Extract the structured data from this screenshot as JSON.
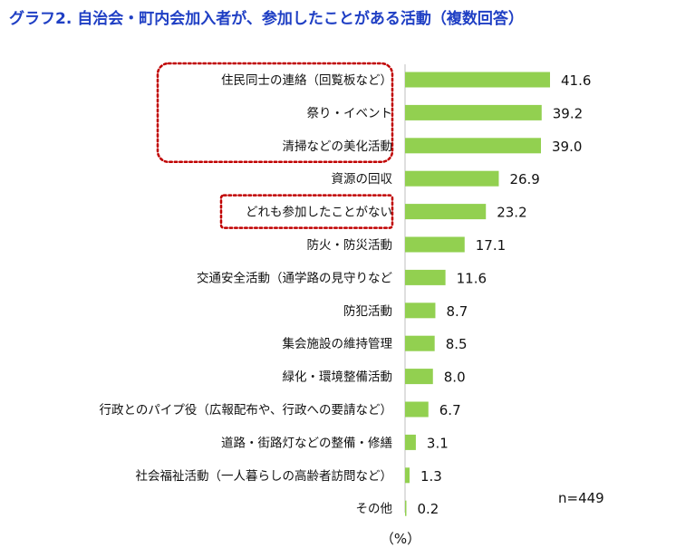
{
  "chart_data": {
    "type": "bar",
    "orientation": "horizontal",
    "title": "グラフ2. 自治会・町内会加入者が、参加したことがある活動（複数回答）",
    "categories": [
      "住民同士の連絡（回覧板など）",
      "祭り・イベント",
      "清掃などの美化活動",
      "資源の回収",
      "どれも参加したことがない",
      "防火・防災活動",
      "交通安全活動（通学路の見守りなど",
      "防犯活動",
      "集会施設の維持管理",
      "緑化・環境整備活動",
      "行政とのパイプ役（広報配布や、行政への要請など）",
      "道路・街路灯などの整備・修繕",
      "社会福祉活動（一人暮らしの高齢者訪問など）",
      "その他"
    ],
    "values": [
      41.6,
      39.2,
      39.0,
      26.9,
      23.2,
      17.1,
      11.6,
      8.7,
      8.5,
      8.0,
      6.7,
      3.1,
      1.3,
      0.2
    ],
    "value_labels": [
      "41.6",
      "39.2",
      "39.0",
      "26.9",
      "23.2",
      "17.1",
      "11.6",
      "8.7",
      "8.5",
      "8.0",
      "6.7",
      "3.1",
      "1.3",
      "0.2"
    ],
    "xlim": [
      0,
      100
    ],
    "unit_label": "（%）",
    "sample_note": "n=449",
    "bar_color": "#92d050",
    "highlight_color": "#c00000",
    "highlight_groups": [
      [
        0,
        2
      ],
      [
        4,
        4
      ]
    ],
    "grid": false
  }
}
